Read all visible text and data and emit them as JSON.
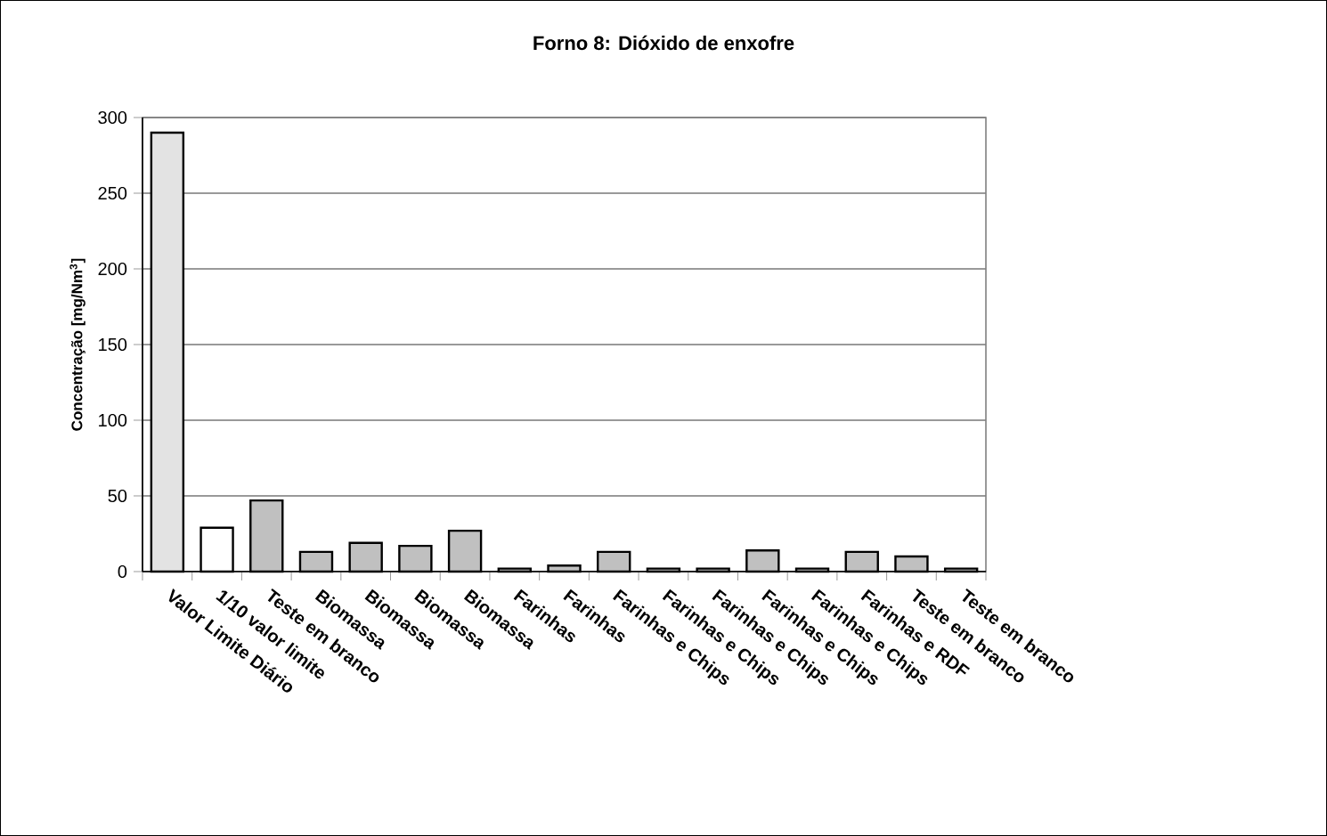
{
  "chart_data": {
    "type": "bar",
    "title": "Forno 8: Dióxido de enxofre",
    "ylabel": "Concentração [mg/Nm$^{3}$]",
    "categories": [
      "Valor Limite Diário",
      "1/10 valor limite",
      "Teste em branco",
      "Biomassa",
      "Biomassa",
      "Biomassa",
      "Biomassa",
      "Farinhas",
      "Farinhas",
      "Farinhas e Chips",
      "Farinhas e Chips",
      "Farinhas e Chips",
      "Farinhas e Chips",
      "Farinhas e Chips",
      "Farinhas e RDF",
      "Teste em branco",
      "Teste em branco"
    ],
    "values": [
      290,
      29,
      47,
      13,
      19,
      17,
      27,
      2,
      4,
      13,
      2,
      2,
      14,
      2,
      13,
      10,
      2
    ],
    "colors": [
      "#e3e3e3",
      "#ffffff",
      "#c0c0c0",
      "#c0c0c0",
      "#c0c0c0",
      "#c0c0c0",
      "#c0c0c0",
      "#c0c0c0",
      "#c0c0c0",
      "#c0c0c0",
      "#c0c0c0",
      "#c0c0c0",
      "#c0c0c0",
      "#c0c0c0",
      "#c0c0c0",
      "#c0c0c0",
      "#c0c0c0"
    ],
    "ylim": [
      0,
      300
    ],
    "yticks": [
      0,
      50,
      100,
      150,
      200,
      250,
      300
    ],
    "grid": "y"
  }
}
